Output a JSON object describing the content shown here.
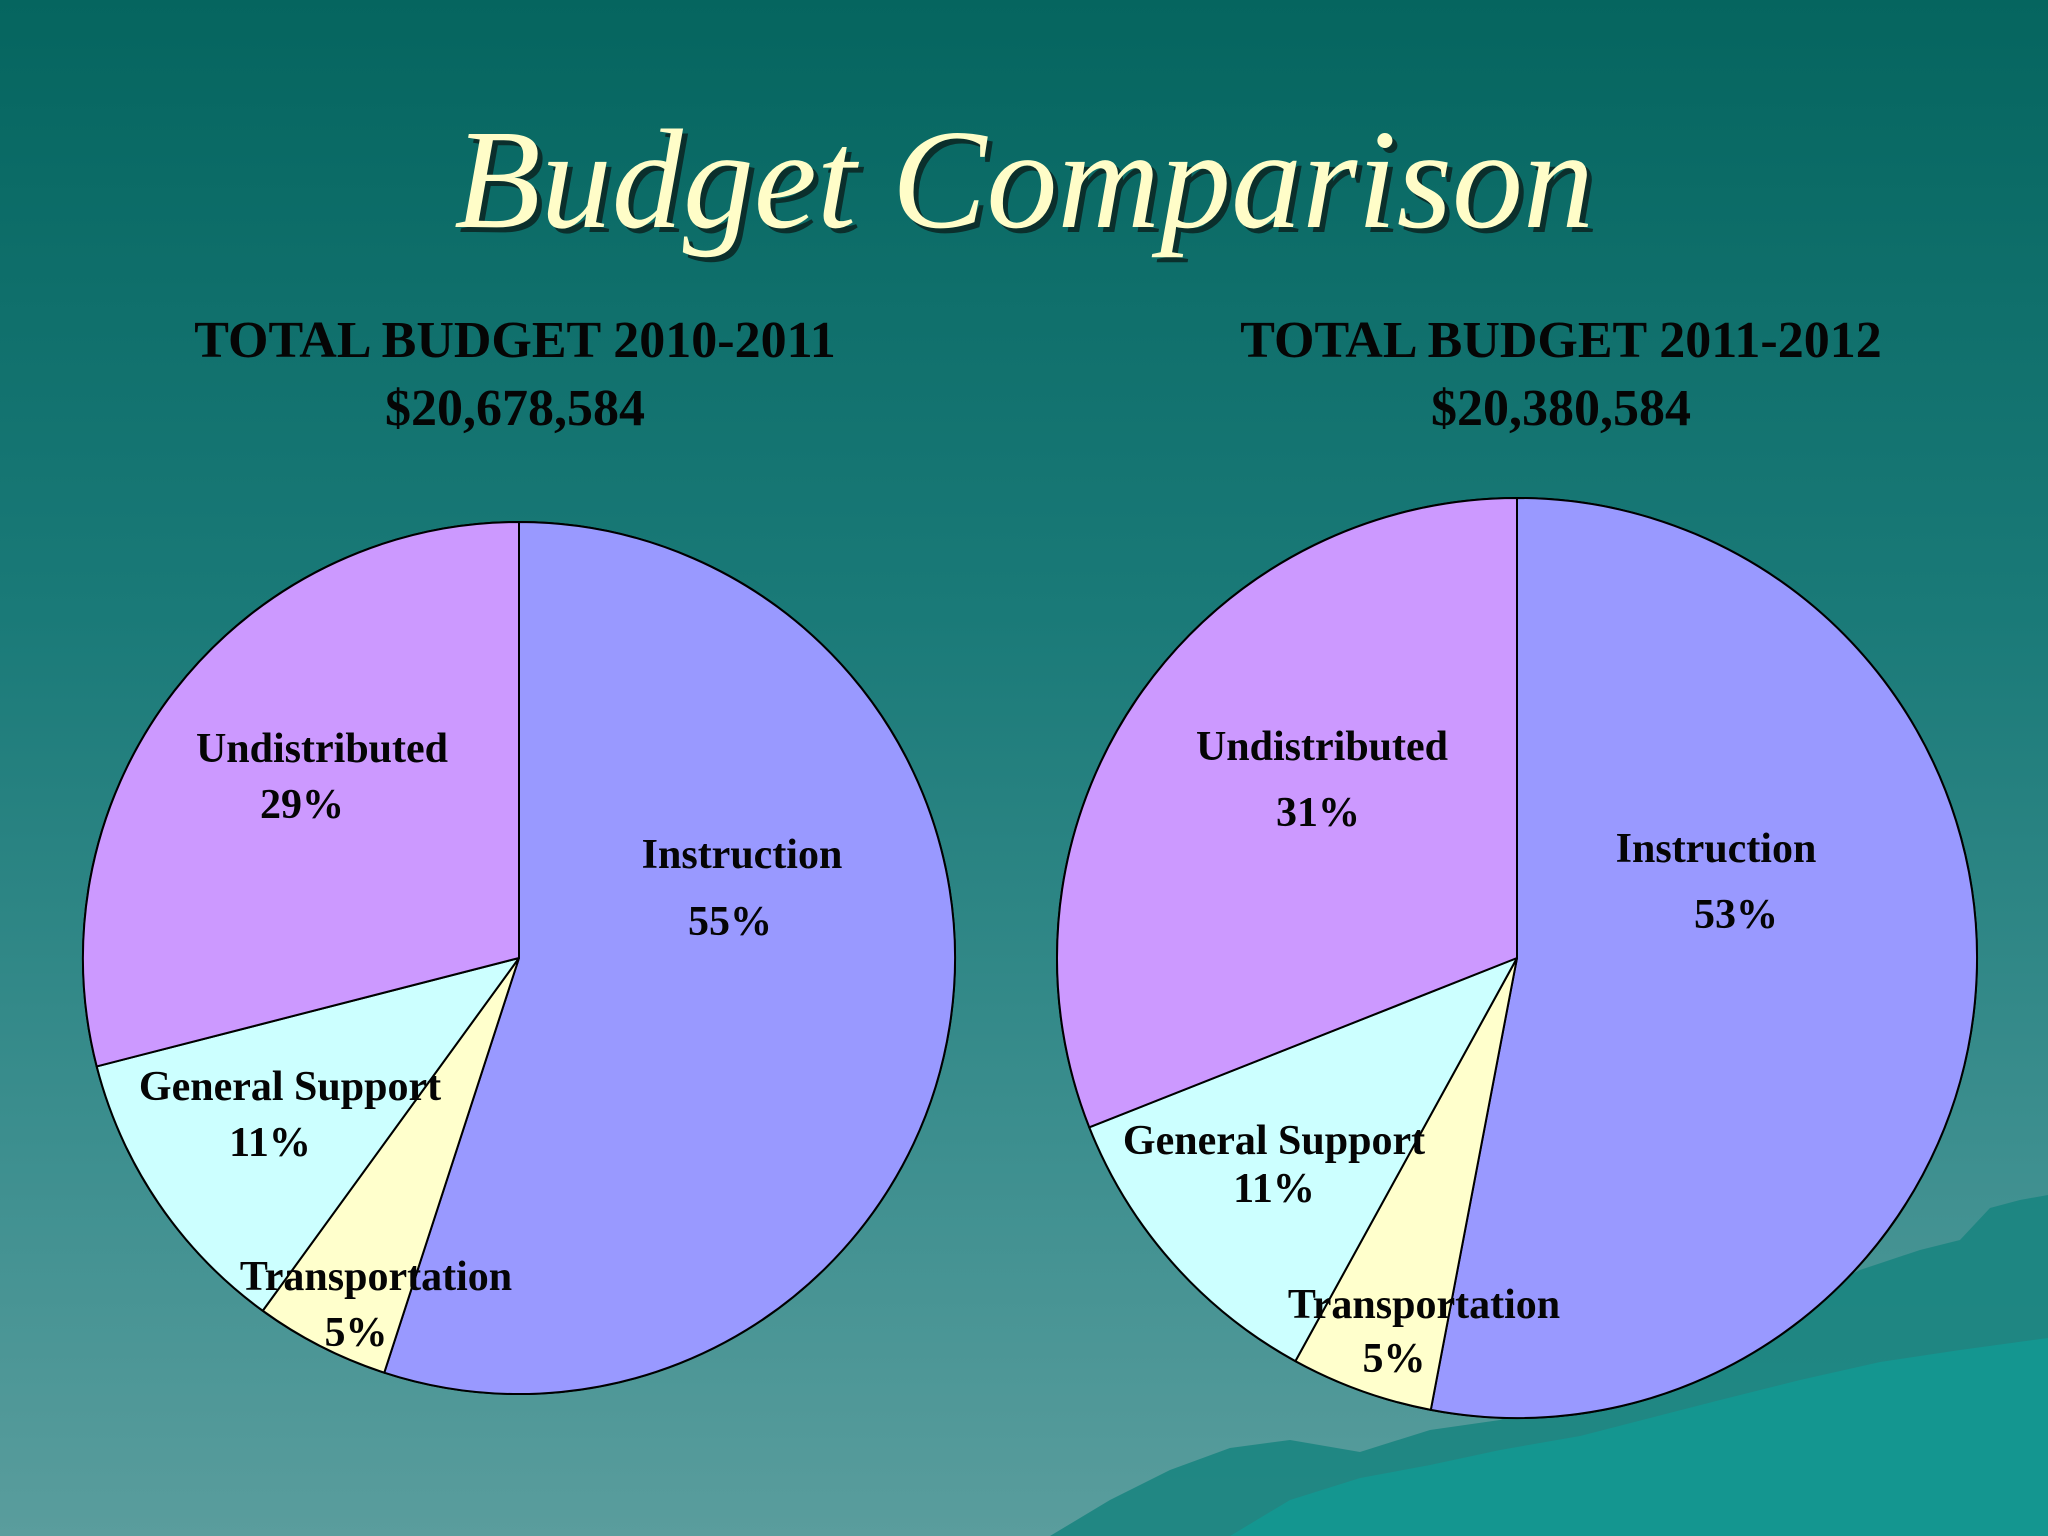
{
  "slide": {
    "title": "Budget Comparison"
  },
  "chart_data": [
    {
      "type": "pie",
      "title": "TOTAL BUDGET 2010-2011",
      "subtitle": "$20,678,584",
      "slices": [
        {
          "label": "Instruction",
          "value": 55,
          "value_label": "55%",
          "color": "#9999ff"
        },
        {
          "label": "Transportation",
          "value": 5,
          "value_label": "5%",
          "color": "#ffffcc"
        },
        {
          "label": "General Support",
          "value": 11,
          "value_label": "11%",
          "color": "#ccffff"
        },
        {
          "label": "Undistributed",
          "value": 29,
          "value_label": "29%",
          "color": "#cc99ff"
        }
      ]
    },
    {
      "type": "pie",
      "title": "TOTAL BUDGET 2011-2012",
      "subtitle": "$20,380,584",
      "slices": [
        {
          "label": "Instruction",
          "value": 53,
          "value_label": "53%",
          "color": "#9999ff"
        },
        {
          "label": "Transportation",
          "value": 5,
          "value_label": "5%",
          "color": "#ffffcc"
        },
        {
          "label": "General Support",
          "value": 11,
          "value_label": "11%",
          "color": "#ccffff"
        },
        {
          "label": "Undistributed",
          "value": 31,
          "value_label": "31%",
          "color": "#cc99ff"
        }
      ]
    }
  ]
}
